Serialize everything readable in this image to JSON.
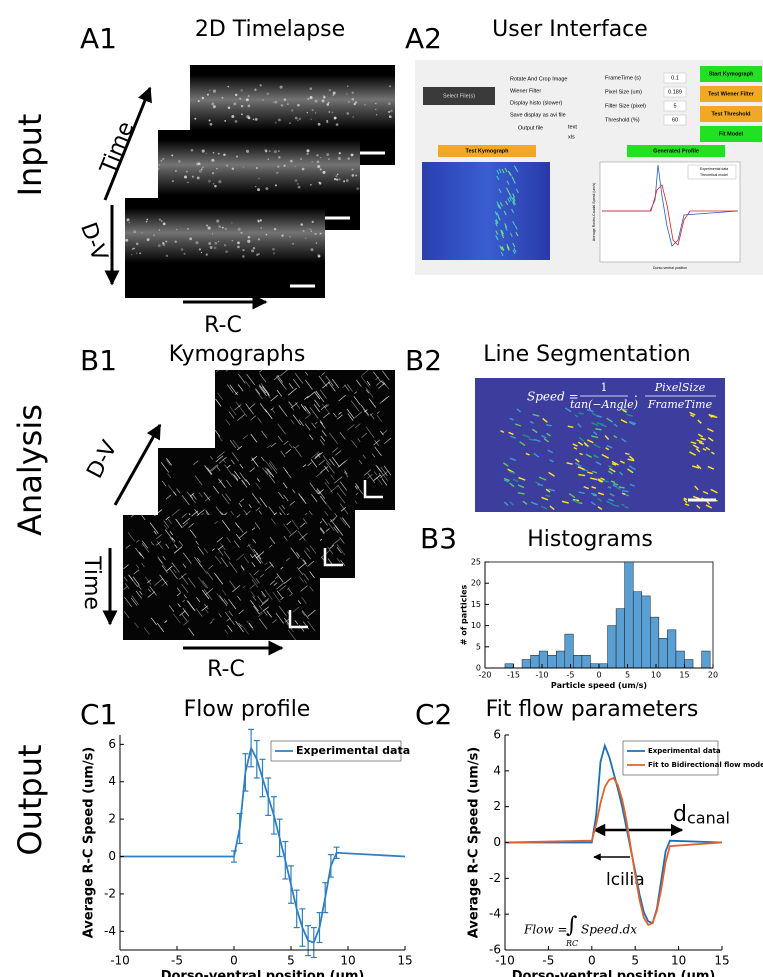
{
  "row_labels": [
    "Input",
    "Analysis",
    "Output"
  ],
  "panels": {
    "A1": {
      "label": "A1",
      "title": "2D Timelapse",
      "time": "Time",
      "dv": "D-V",
      "rc": "R-C"
    },
    "A2": {
      "label": "A2",
      "title": "User Interface"
    },
    "B1": {
      "label": "B1",
      "title": "Kymographs",
      "dv": "D-V",
      "time": "Time",
      "rc": "R-C"
    },
    "B2": {
      "label": "B2",
      "title": "Line Segmentation",
      "formula": {
        "lhs": "Speed =",
        "num": "1",
        "den": "tan(−Angle)",
        "dot": "·",
        "num2": "PixelSize",
        "den2": "FrameTime"
      }
    }
  },
  "ui": {
    "select_button": "Select File(s)",
    "options": [
      "Rotate And Crop Image",
      "Wiener Filter",
      "Display histo (slower)",
      "Save display as avi file"
    ],
    "output_file": "Output file",
    "formats": [
      "text",
      "xls"
    ],
    "params": [
      {
        "label": "FrameTime (s)",
        "value": "0.1"
      },
      {
        "label": "Pixel Size (um)",
        "value": "0.189"
      },
      {
        "label": "Filter Size (pixel)",
        "value": "5"
      },
      {
        "label": "Threshold (%)",
        "value": "60"
      }
    ],
    "buttons": [
      "Start Kymograph",
      "Test Wiener Filter",
      "Test Threshold",
      "Fit Model"
    ],
    "kymo_header": "Test Kymograph",
    "profile_header": "Generated Profile",
    "profile_legend": [
      "Experimental data",
      "Theoretical model"
    ],
    "profile_ylabel": "Average Rostro-Caudal Speed (um/s)",
    "profile_xlabel": "Dorso-ventral position"
  },
  "chart_data": [
    {
      "type": "histogram",
      "panel": "B3",
      "title": "Histograms",
      "x_label": "Particle speed (um/s)",
      "y_label": "# of particles",
      "bins": [
        -16.5,
        -15,
        -13.5,
        -12,
        -10.5,
        -9,
        -7.5,
        -6,
        -4.5,
        -3,
        -1.5,
        0,
        1.5,
        3,
        4.5,
        6,
        7.5,
        9,
        10.5,
        12,
        13.5,
        15,
        16.5,
        18,
        19.5
      ],
      "values": [
        1,
        0,
        2,
        3,
        4,
        3,
        4,
        8,
        3,
        3,
        1,
        1,
        10,
        14,
        25,
        18,
        17,
        12,
        7,
        9,
        4,
        2,
        0,
        4
      ],
      "color": "#5a9fd4",
      "xlim": [
        -20,
        20
      ],
      "xticks": [
        -20,
        -15,
        -10,
        -5,
        0,
        5,
        10,
        15,
        20
      ],
      "ylim": [
        0,
        25
      ],
      "yticks": [
        0,
        5,
        10,
        15,
        20,
        25
      ]
    },
    {
      "type": "line",
      "panel": "C1",
      "title": "Flow profile",
      "x_label": "Dorso-ventral position (um)",
      "y_label": "Average R-C Speed (um/s)",
      "x": [
        -10,
        0,
        0.5,
        1,
        1.5,
        2,
        2.5,
        3,
        3.5,
        4,
        4.5,
        5,
        5.5,
        6,
        6.5,
        7,
        7.5,
        8,
        8.5,
        9,
        15
      ],
      "series": [
        {
          "name": "Experimental data",
          "color": "#2f7fc1",
          "values": [
            0,
            0,
            1.5,
            4.5,
            5.8,
            5.2,
            4.2,
            3.2,
            2.2,
            1.0,
            -0.2,
            -1.5,
            -2.8,
            -3.8,
            -4.5,
            -4.6,
            -3.8,
            -2.2,
            -0.5,
            0.2,
            0
          ],
          "errors": [
            0,
            0.3,
            0.8,
            1,
            1,
            1,
            1,
            1,
            1,
            1,
            1,
            1,
            1,
            1,
            0.8,
            0.8,
            0.8,
            0.8,
            0.6,
            0.3,
            0
          ]
        }
      ],
      "xlim": [
        -10,
        15
      ],
      "xticks": [
        -10,
        -5,
        0,
        5,
        10,
        15
      ],
      "ylim": [
        -5,
        6.5
      ],
      "yticks": [
        -4,
        -2,
        0,
        2,
        4,
        6
      ],
      "legend": "upper right"
    },
    {
      "type": "line",
      "panel": "C2",
      "title": "Fit flow parameters",
      "x_label": "Dorso-ventral position (um)",
      "y_label": "Average R-C Speed (um/s)",
      "x": [
        -10,
        0,
        0.5,
        1,
        1.5,
        2,
        2.5,
        3,
        3.5,
        4,
        4.5,
        5,
        5.5,
        6,
        6.5,
        7,
        7.5,
        8,
        8.5,
        9,
        15
      ],
      "series": [
        {
          "name": "Experimental data",
          "color": "#1f6fb5",
          "values": [
            0,
            0,
            1.5,
            4.5,
            5.4,
            4.8,
            3.9,
            3.0,
            2.0,
            0.8,
            -0.4,
            -1.6,
            -2.9,
            -3.9,
            -4.4,
            -4.5,
            -3.7,
            -2.1,
            -0.5,
            0.1,
            0
          ]
        },
        {
          "name": "Fit to Bidirectional flow model",
          "color": "#e0622a",
          "values": [
            0,
            0.1,
            1.0,
            2.2,
            3.1,
            3.5,
            3.6,
            3.2,
            2.4,
            1.2,
            -0.3,
            -1.8,
            -3.2,
            -4.2,
            -4.6,
            -4.5,
            -3.8,
            -2.6,
            -1.1,
            -0.2,
            0
          ]
        }
      ],
      "xlim": [
        -10,
        15
      ],
      "xticks": [
        -10,
        -5,
        0,
        5,
        10,
        15
      ],
      "ylim": [
        -6,
        6
      ],
      "yticks": [
        -6,
        -4,
        -2,
        0,
        2,
        4,
        6
      ],
      "legend": "upper right",
      "annotations": {
        "d_canal": {
          "main": "d",
          "sub": "canal"
        },
        "l_cilia": "lcilia",
        "flow_formula": {
          "lhs": "Flow =",
          "integral": "∫",
          "sub": "RC",
          "rhs": "Speed.dx"
        }
      }
    }
  ]
}
